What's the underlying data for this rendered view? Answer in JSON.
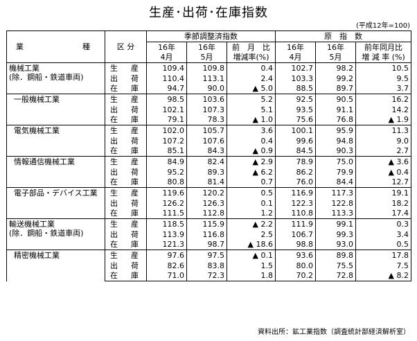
{
  "title": "生産･出荷･在庫指数",
  "base_note": "(平成12年=100)",
  "source_note": "資料出所：鉱工業指数（調査統計部経済解析室）",
  "headers": {
    "industry_a": "業",
    "industry_b": "種",
    "category": "区 分",
    "seasonal": "季節調整済指数",
    "original": "原　指　数",
    "h16_4a": "16年",
    "h16_4b": "4月",
    "h16_5a": "16年",
    "h16_5b": "5月",
    "mom_a": "前　月　比",
    "mom_b": "増減率(%)",
    "o16_4a": "16年",
    "o16_4b": "4月",
    "o16_5a": "16年",
    "o16_5b": "5月",
    "yoy_a": "前年同月比",
    "yoy_b": "増 減 率 (%)"
  },
  "groups": [
    {
      "name": "機械工業",
      "name2": "(除．鋼船・鉄道車両)",
      "rows": [
        {
          "type": "生　産",
          "v1": "109.4",
          "v2": "109.8",
          "v3": "0.4",
          "v4": "102.7",
          "v5": "98.2",
          "v6": "10.5"
        },
        {
          "type": "出　荷",
          "v1": "110.4",
          "v2": "113.1",
          "v3": "2.4",
          "v4": "103.3",
          "v5": "99.2",
          "v6": "9.5"
        },
        {
          "type": "在　庫",
          "v1": "94.7",
          "v2": "90.0",
          "v3": "▲ 5.0",
          "v4": "88.5",
          "v5": "89.7",
          "v6": "3.7"
        }
      ]
    },
    {
      "name": "一般機械工業",
      "name2": "",
      "rows": [
        {
          "type": "生　産",
          "v1": "98.5",
          "v2": "103.6",
          "v3": "5.2",
          "v4": "92.5",
          "v5": "90.5",
          "v6": "16.2"
        },
        {
          "type": "出　荷",
          "v1": "102.1",
          "v2": "107.3",
          "v3": "5.1",
          "v4": "93.5",
          "v5": "91.1",
          "v6": "14.2"
        },
        {
          "type": "在　庫",
          "v1": "79.1",
          "v2": "78.3",
          "v3": "▲ 1.0",
          "v4": "75.6",
          "v5": "76.8",
          "v6": "▲ 1.9"
        }
      ]
    },
    {
      "name": "電気機械工業",
      "name2": "",
      "rows": [
        {
          "type": "生　産",
          "v1": "102.0",
          "v2": "105.7",
          "v3": "3.6",
          "v4": "100.1",
          "v5": "95.9",
          "v6": "11.3"
        },
        {
          "type": "出　荷",
          "v1": "107.2",
          "v2": "107.6",
          "v3": "0.4",
          "v4": "99.6",
          "v5": "94.8",
          "v6": "9.0"
        },
        {
          "type": "在　庫",
          "v1": "85.1",
          "v2": "84.3",
          "v3": "▲ 0.9",
          "v4": "84.5",
          "v5": "90.3",
          "v6": "2.7"
        }
      ]
    },
    {
      "name": "情報通信機械工業",
      "name2": "",
      "rows": [
        {
          "type": "生　産",
          "v1": "84.9",
          "v2": "82.4",
          "v3": "▲ 2.9",
          "v4": "78.9",
          "v5": "75.0",
          "v6": "▲ 3.6"
        },
        {
          "type": "出　荷",
          "v1": "95.2",
          "v2": "89.3",
          "v3": "▲ 6.2",
          "v4": "86.2",
          "v5": "79.9",
          "v6": "▲ 0.4"
        },
        {
          "type": "在　庫",
          "v1": "80.8",
          "v2": "81.4",
          "v3": "0.7",
          "v4": "76.0",
          "v5": "84.4",
          "v6": "12.7"
        }
      ]
    },
    {
      "name": "電子部品・デバイス工業",
      "name2": "",
      "rows": [
        {
          "type": "生　産",
          "v1": "119.6",
          "v2": "120.2",
          "v3": "0.5",
          "v4": "116.9",
          "v5": "117.3",
          "v6": "19.1"
        },
        {
          "type": "出　荷",
          "v1": "126.2",
          "v2": "126.3",
          "v3": "0.1",
          "v4": "122.3",
          "v5": "122.8",
          "v6": "18.2"
        },
        {
          "type": "在　庫",
          "v1": "111.5",
          "v2": "112.8",
          "v3": "1.2",
          "v4": "110.8",
          "v5": "113.3",
          "v6": "17.4"
        }
      ]
    },
    {
      "name": "輸送機械工業",
      "name2": "(除．鋼船・鉄道車両)",
      "rows": [
        {
          "type": "生　産",
          "v1": "118.5",
          "v2": "115.9",
          "v3": "▲ 2.2",
          "v4": "111.9",
          "v5": "99.1",
          "v6": "0.3"
        },
        {
          "type": "出　荷",
          "v1": "113.9",
          "v2": "116.8",
          "v3": "2.5",
          "v4": "106.7",
          "v5": "99.3",
          "v6": "3.4"
        },
        {
          "type": "在　庫",
          "v1": "121.3",
          "v2": "98.7",
          "v3": "▲ 18.6",
          "v4": "98.8",
          "v5": "93.0",
          "v6": "0.5"
        }
      ]
    },
    {
      "name": "精密機械工業",
      "name2": "",
      "rows": [
        {
          "type": "生　産",
          "v1": "97.6",
          "v2": "97.5",
          "v3": "▲ 0.1",
          "v4": "93.6",
          "v5": "89.8",
          "v6": "17.8"
        },
        {
          "type": "出　荷",
          "v1": "82.6",
          "v2": "83.8",
          "v3": "1.5",
          "v4": "80.0",
          "v5": "75.5",
          "v6": "7.5"
        },
        {
          "type": "在　庫",
          "v1": "71.0",
          "v2": "72.3",
          "v3": "1.8",
          "v4": "70.2",
          "v5": "72.8",
          "v6": "▲ 8.2"
        }
      ]
    }
  ]
}
